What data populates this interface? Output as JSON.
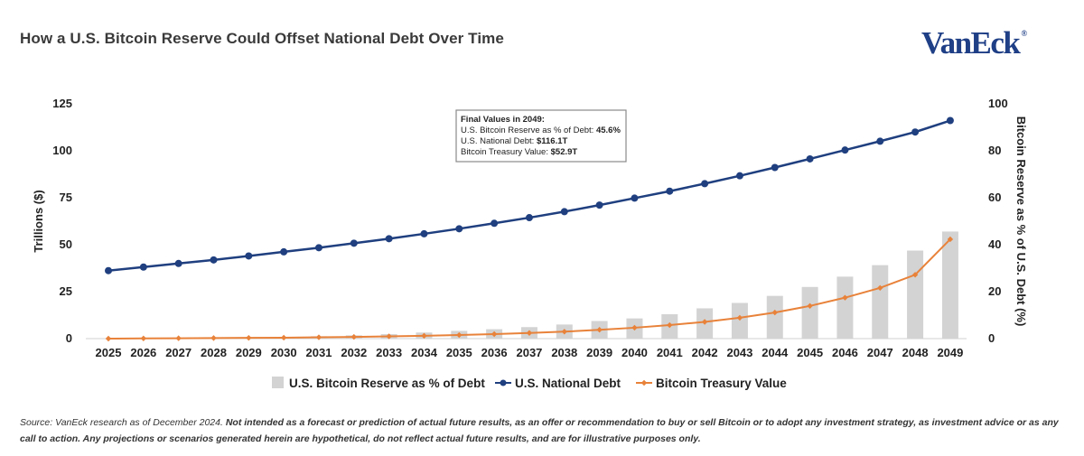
{
  "header": {
    "title": "How a U.S. Bitcoin Reserve Could Offset National Debt Over Time",
    "logo_text": "VanEck",
    "logo_mark": "®"
  },
  "footnote": {
    "source": "Source: VanEck research as of December 2024.",
    "disclaimer": "Not intended as a forecast or prediction of actual future results, as an offer or recommendation to buy or sell Bitcoin or to adopt any investment strategy, as investment advice or as any call to action. Any projections or scenarios generated herein are hypothetical, do not reflect actual future results, and are for illustrative purposes only."
  },
  "chart_data": {
    "type": "bar",
    "title": "How a U.S. Bitcoin Reserve Could Offset National Debt Over Time",
    "ylabel": "Trillions ($)",
    "y2label": "Bitcoin Reserve as % of U.S. Debt (%)",
    "ylim": [
      0,
      125
    ],
    "y2lim": [
      0,
      100
    ],
    "yticks": [
      0,
      25,
      50,
      75,
      100,
      125
    ],
    "y2ticks": [
      0,
      20,
      40,
      60,
      80,
      100
    ],
    "grid": false,
    "legend_position": "bottom",
    "categories": [
      "2025",
      "2026",
      "2027",
      "2028",
      "2029",
      "2030",
      "2031",
      "2032",
      "2033",
      "2034",
      "2035",
      "2036",
      "2037",
      "2038",
      "2039",
      "2040",
      "2041",
      "2042",
      "2043",
      "2044",
      "2045",
      "2046",
      "2047",
      "2048",
      "2049"
    ],
    "series": [
      {
        "name": "U.S. Bitcoin Reserve as % of Debt",
        "kind": "bar",
        "axis": "right",
        "color": "#d3d3d3",
        "values": [
          0.0,
          0.1,
          0.2,
          0.3,
          0.5,
          0.7,
          1.0,
          1.4,
          1.9,
          2.6,
          3.3,
          4.0,
          4.9,
          6.0,
          7.5,
          8.6,
          10.4,
          12.9,
          15.2,
          18.2,
          22.0,
          26.4,
          31.3,
          37.5,
          45.6
        ]
      },
      {
        "name": "U.S. National Debt",
        "kind": "line",
        "axis": "left",
        "color": "#1f3f7f",
        "marker": "circle",
        "values": [
          36.2,
          38.1,
          40.0,
          41.9,
          44.0,
          46.2,
          48.4,
          50.8,
          53.2,
          55.8,
          58.5,
          61.4,
          64.4,
          67.6,
          71.1,
          74.8,
          78.5,
          82.5,
          86.7,
          91.1,
          95.7,
          100.4,
          105.1,
          110.0,
          116.1
        ]
      },
      {
        "name": "Bitcoin Treasury Value",
        "kind": "line",
        "axis": "left",
        "color": "#e8823a",
        "marker": "diamond",
        "values": [
          0.0,
          0.1,
          0.2,
          0.3,
          0.4,
          0.5,
          0.7,
          0.9,
          1.2,
          1.5,
          1.9,
          2.4,
          3.0,
          3.7,
          4.7,
          5.8,
          7.2,
          8.9,
          11.1,
          13.9,
          17.4,
          21.8,
          27.0,
          34.0,
          52.9
        ]
      }
    ],
    "annotation": {
      "heading": "Final Values in 2049:",
      "lines": [
        {
          "label": "U.S. Bitcoin Reserve as % of Debt: ",
          "value": "45.6%"
        },
        {
          "label": "U.S. National Debt: ",
          "value": "$116.1T"
        },
        {
          "label": "Bitcoin Treasury Value: ",
          "value": "$52.9T"
        }
      ]
    }
  }
}
